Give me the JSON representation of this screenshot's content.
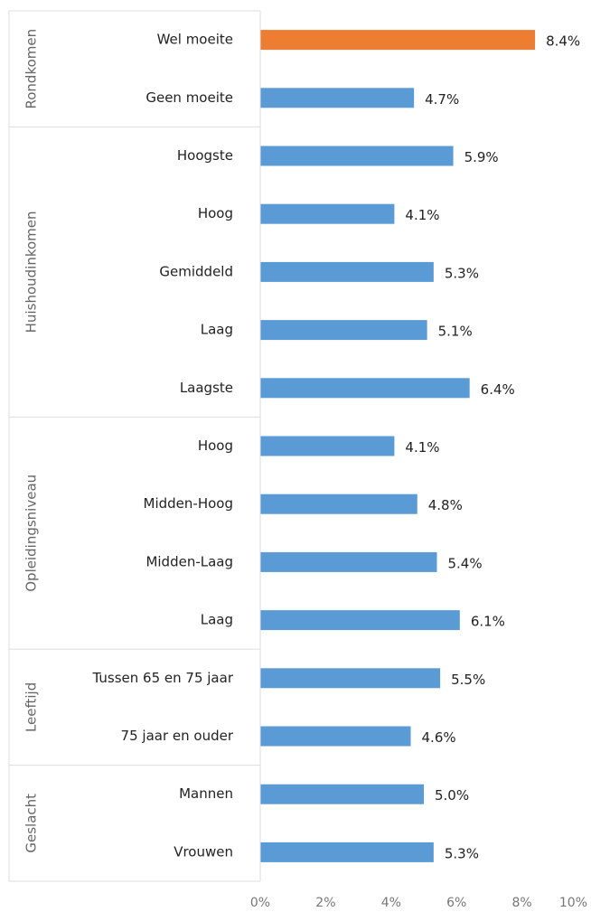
{
  "chart_data": {
    "type": "grouped-hbar",
    "groups": [
      {
        "name": "Rondkomen",
        "categories": [
          "Wel moeite",
          "Geen moeite"
        ],
        "values": [
          8.4,
          4.7
        ],
        "value_labels": [
          "8.4%",
          "4.7%"
        ],
        "colors": [
          "#ed7d31",
          "#5b9bd5"
        ]
      },
      {
        "name": "Huishoudinkomen",
        "categories": [
          "Hoogste",
          "Hoog",
          "Gemiddeld",
          "Laag",
          "Laagste"
        ],
        "values": [
          5.9,
          4.1,
          5.3,
          5.1,
          6.4
        ],
        "value_labels": [
          "5.9%",
          "4.1%",
          "5.3%",
          "5.1%",
          "6.4%"
        ],
        "colors": [
          "#5b9bd5",
          "#5b9bd5",
          "#5b9bd5",
          "#5b9bd5",
          "#5b9bd5"
        ]
      },
      {
        "name": "Opleidingsniveau",
        "categories": [
          "Hoog",
          "Midden-Hoog",
          "Midden-Laag",
          "Laag"
        ],
        "values": [
          4.1,
          4.8,
          5.4,
          6.1
        ],
        "value_labels": [
          "4.1%",
          "4.8%",
          "5.4%",
          "6.1%"
        ],
        "colors": [
          "#5b9bd5",
          "#5b9bd5",
          "#5b9bd5",
          "#5b9bd5"
        ]
      },
      {
        "name": "Leeftijd",
        "categories": [
          "Tussen 65 en 75 jaar",
          "75 jaar en ouder"
        ],
        "values": [
          5.5,
          4.6
        ],
        "value_labels": [
          "5.5%",
          "4.6%"
        ],
        "colors": [
          "#5b9bd5",
          "#5b9bd5"
        ]
      },
      {
        "name": "Geslacht",
        "categories": [
          "Mannen",
          "Vrouwen"
        ],
        "values": [
          5.0,
          5.3
        ],
        "value_labels": [
          "5.0%",
          "5.3%"
        ],
        "colors": [
          "#5b9bd5",
          "#5b9bd5"
        ]
      }
    ],
    "xlim": [
      0,
      10
    ],
    "xticks": [
      {
        "value": 0,
        "label": "0%"
      },
      {
        "value": 2,
        "label": "2%"
      },
      {
        "value": 4,
        "label": "4%"
      },
      {
        "value": 6,
        "label": "6%"
      },
      {
        "value": 8,
        "label": "8%"
      },
      {
        "value": 10,
        "label": "10%"
      }
    ]
  }
}
